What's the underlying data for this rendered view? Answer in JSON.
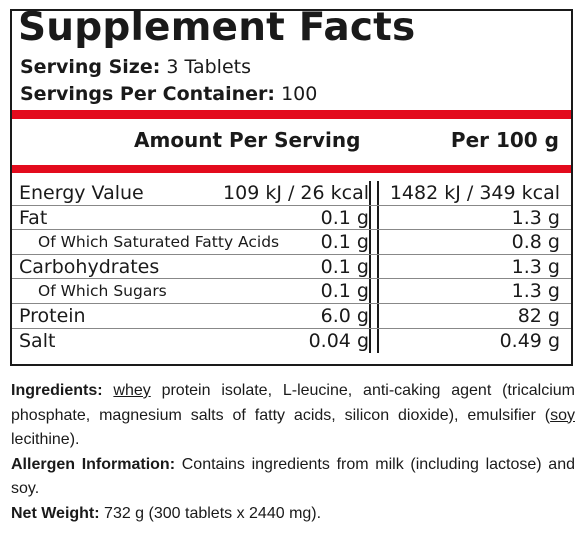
{
  "title": "Supplement Facts",
  "serving_size": {
    "label": "Serving Size:",
    "value": "3 Tablets"
  },
  "servings_per_container": {
    "label": "Servings Per Container:",
    "value": "100"
  },
  "table_header": {
    "per_serving": "Amount Per Serving",
    "per_100g": "Per 100 g"
  },
  "rows": [
    {
      "name": "Energy Value",
      "per_serving": "109 kJ / 26 kcal",
      "per_100g": "1482 kJ / 349 kcal",
      "sub": false
    },
    {
      "name": "Fat",
      "per_serving": "0.1 g",
      "per_100g": "1.3 g",
      "sub": false
    },
    {
      "name": "Of Which Saturated Fatty Acids",
      "per_serving": "0.1 g",
      "per_100g": "0.8 g",
      "sub": true
    },
    {
      "name": "Carbohydrates",
      "per_serving": "0.1 g",
      "per_100g": "1.3 g",
      "sub": false
    },
    {
      "name": "Of Which Sugars",
      "per_serving": "0.1 g",
      "per_100g": "1.3 g",
      "sub": true
    },
    {
      "name": "Protein",
      "per_serving": "6.0 g",
      "per_100g": "82 g",
      "sub": false
    },
    {
      "name": "Salt",
      "per_serving": "0.04 g",
      "per_100g": "0.49 g",
      "sub": false
    }
  ],
  "ingredients": {
    "label": "Ingredients:",
    "allergen_whey": "whey",
    "text_1": " protein isolate, L-leucine, anti-caking agent (tricalcium phosphate, magnesium salts of fatty acids, silicon dioxide), emulsifier (",
    "allergen_soy": "soy",
    "text_2": " lecithine)."
  },
  "allergen": {
    "label": "Allergen Information:",
    "text": " Contains ingredients from milk (including lactose) and soy."
  },
  "net_weight": {
    "label": "Net Weight:",
    "text": " 732 g (300 tablets x 2440 mg)."
  },
  "colors": {
    "accent_bar": "#e30b1d",
    "text": "#1a1a1a"
  }
}
